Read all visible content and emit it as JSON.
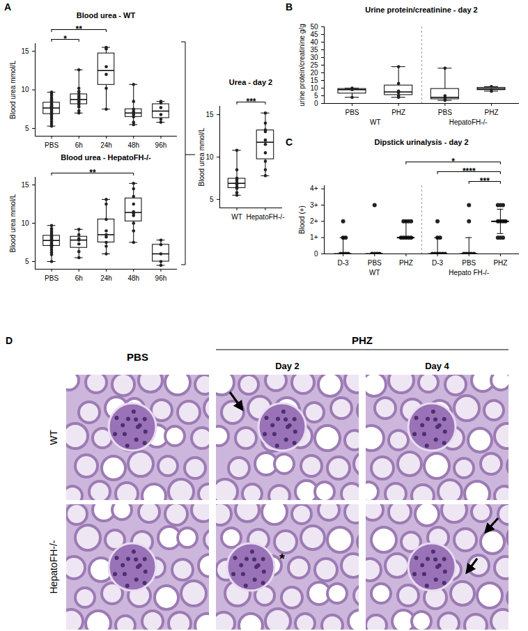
{
  "chart_data": [
    {
      "panel": "A",
      "type": "box",
      "title": "Blood urea - WT",
      "y_label": "Blood urea mmol/L",
      "categories": [
        "PBS",
        "6h",
        "24h",
        "48h",
        "96h"
      ],
      "values": [
        [
          9.7,
          9.5,
          9.3,
          9.0,
          8.8,
          8.6,
          8.5,
          8.3,
          8.2,
          8.1,
          8.0,
          7.9,
          7.8,
          7.7,
          7.6,
          7.5,
          7.4,
          7.3,
          7.2,
          7.0,
          6.9,
          6.8,
          6.6,
          6.4,
          6.2,
          5.9,
          5.6,
          5.3
        ],
        [
          12.6,
          10.2,
          9.8,
          9.5,
          9.2,
          9.0,
          8.8,
          8.7,
          8.5,
          8.3,
          8.1,
          7.8,
          7.3,
          7.0
        ],
        [
          15.5,
          15.3,
          13.0,
          12.0,
          10.2,
          7.5
        ],
        [
          10.7,
          8.5,
          7.5,
          7.2,
          7.0,
          6.8,
          6.5,
          5.8,
          5.5
        ],
        [
          8.5,
          8.3,
          7.7,
          6.8,
          6.2,
          5.8
        ]
      ],
      "ylim": [
        4,
        16
      ],
      "yticks": [
        5,
        10,
        15
      ],
      "color": "#222222",
      "annotations": [
        {
          "from": 0,
          "to": 1,
          "text": "*"
        },
        {
          "from": 0,
          "to": 2,
          "text": "**"
        }
      ]
    },
    {
      "type": "box",
      "title": "Blood urea - HepatoFH-/-",
      "y_label": "Blood urea mmol/L",
      "categories": [
        "PBS",
        "6h",
        "24h",
        "48h",
        "96h"
      ],
      "values": [
        [
          9.7,
          9.3,
          9.0,
          8.8,
          8.6,
          8.4,
          8.3,
          8.2,
          8.0,
          7.9,
          7.8,
          7.7,
          7.6,
          7.5,
          7.3,
          7.2,
          7.0,
          6.8,
          6.5,
          6.2,
          5.9,
          5.0
        ],
        [
          9.2,
          8.5,
          8.0,
          7.8,
          7.3,
          6.3,
          5.5
        ],
        [
          13.1,
          12.5,
          10.5,
          9.0,
          8.5,
          8.2,
          7.5,
          7.0,
          6.0
        ],
        [
          15.2,
          14.5,
          13.5,
          12.5,
          11.5,
          11.3,
          11.0,
          10.0,
          9.0,
          7.5
        ],
        [
          7.8,
          7.2,
          6.0,
          5.0,
          4.5
        ]
      ],
      "ylim": [
        4,
        16
      ],
      "yticks": [
        5,
        10,
        15
      ],
      "color": "#222222",
      "annotations": [
        {
          "from": 0,
          "to": 3,
          "text": "**"
        }
      ]
    },
    {
      "type": "box",
      "title": "Urea - day 2",
      "y_label": "Blood urea mmol/L",
      "categories": [
        "WT",
        "HepatoFH-/-"
      ],
      "values": [
        [
          10.8,
          8.5,
          7.5,
          7.3,
          7.0,
          6.8,
          6.5,
          6.3,
          5.8,
          5.5
        ],
        [
          15.2,
          14.0,
          13.2,
          13.0,
          12.0,
          11.5,
          10.5,
          9.5,
          8.5,
          7.8
        ]
      ],
      "ylim": [
        4,
        16
      ],
      "yticks": [
        5,
        10,
        15
      ],
      "color": "#222222",
      "annotations": [
        {
          "from": 0,
          "to": 1,
          "text": "***"
        }
      ]
    },
    {
      "panel": "B",
      "type": "box",
      "title": "Urine protein/creatinine - day 2",
      "y_label": "urine protein/creatinine g/g",
      "categories": [
        "PBS",
        "PHZ",
        "PBS",
        "PHZ"
      ],
      "group": [
        "WT",
        "WT",
        "HepatoFH-/-",
        "HepatoFH-/-"
      ],
      "values": [
        [
          10,
          9,
          4
        ],
        [
          24,
          13,
          8,
          7,
          5,
          4
        ],
        [
          23,
          5,
          3,
          2
        ],
        [
          11,
          8
        ]
      ],
      "ylim": [
        0,
        50
      ],
      "yticks": [
        0,
        5,
        10,
        15,
        20,
        25,
        30,
        35,
        40,
        45,
        50
      ],
      "color": "#222222",
      "annotations": []
    },
    {
      "panel": "C",
      "type": "dot",
      "title": "Dipstick urinalysis - day 2",
      "y_label": "Blood (+)",
      "categories": [
        "D-3",
        "PBS",
        "PHZ",
        "D-3",
        "PBS",
        "PHZ"
      ],
      "group": [
        "WT",
        "WT",
        "WT",
        "Hepato FH-/-",
        "Hepato FH-/-",
        "Hepato FH-/-"
      ],
      "values": [
        [
          2,
          1,
          1,
          0,
          0,
          0,
          0
        ],
        [
          3,
          0,
          0,
          0,
          0
        ],
        [
          2,
          2,
          2,
          2,
          1,
          1,
          1,
          1,
          1
        ],
        [
          2,
          1,
          1,
          0,
          0,
          0,
          0,
          0,
          0
        ],
        [
          3,
          2,
          0,
          0,
          0,
          0,
          0
        ],
        [
          3,
          3,
          3,
          2,
          2,
          2,
          2,
          1,
          1,
          1
        ]
      ],
      "ylim": [
        0,
        4.2
      ],
      "yticks": [
        0,
        {
          "value": 1,
          "label": "1+"
        },
        {
          "value": 2,
          "label": "2+"
        },
        {
          "value": 3,
          "label": "3+"
        },
        {
          "value": 4,
          "label": "4+"
        }
      ],
      "color": "#222222",
      "annotations": [
        {
          "from": 4,
          "to": 5,
          "text": "***"
        },
        {
          "from": 3,
          "to": 5,
          "text": "****"
        },
        {
          "from": 2,
          "to": 5,
          "text": "*"
        }
      ]
    }
  ],
  "panel_d": {
    "panel": "D",
    "columns": [
      "PBS",
      "Day 2",
      "Day 4"
    ],
    "column_group": {
      "label": "PHZ",
      "columns": [
        1,
        2
      ]
    },
    "rows": [
      "WT",
      "HepatoFH-/-"
    ],
    "annotations": [
      {
        "row": 1,
        "column": 1,
        "text": "*"
      }
    ]
  }
}
